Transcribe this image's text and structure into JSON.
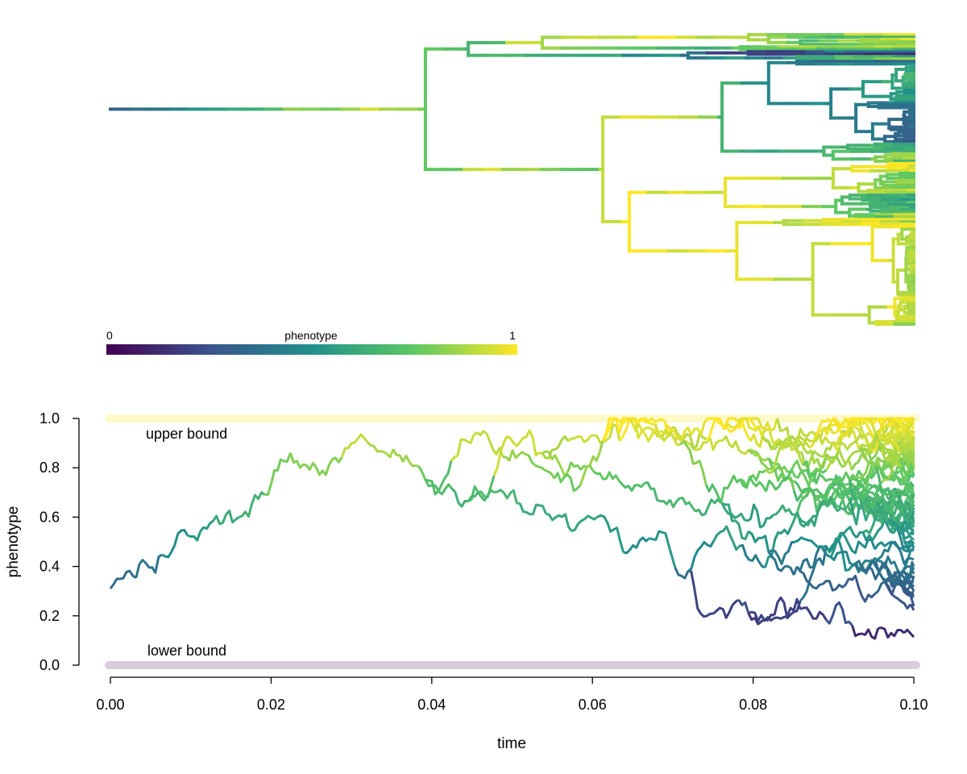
{
  "chart_data": [
    {
      "type": "line",
      "subtype": "phylogram-with-continuous-character-map",
      "tips": 120,
      "x_range": [
        0,
        0.1
      ],
      "root_phenotype": 0.3,
      "colorbar": {
        "title": "phenotype",
        "min_label": "0",
        "max_label": "1",
        "palette": [
          "#440154",
          "#3b528b",
          "#21908c",
          "#5dc863",
          "#fde725"
        ]
      }
    },
    {
      "type": "line",
      "subtype": "traitgram",
      "xlabel": "time",
      "ylabel": "phenotype",
      "xlim": [
        0,
        0.1
      ],
      "ylim": [
        0,
        1
      ],
      "x_ticks": [
        "0.00",
        "0.02",
        "0.04",
        "0.06",
        "0.08",
        "0.10"
      ],
      "y_ticks": [
        "0.0",
        "0.2",
        "0.4",
        "0.6",
        "0.8",
        "1.0"
      ],
      "bounds": {
        "upper": {
          "label": "upper bound",
          "value": 1.0,
          "color": "#fde725"
        },
        "lower": {
          "label": "lower bound",
          "value": 0.0,
          "color": "#440154"
        }
      },
      "root": {
        "x": 0.0,
        "y": 0.31
      },
      "n_lineages": 120,
      "grid": false
    }
  ]
}
